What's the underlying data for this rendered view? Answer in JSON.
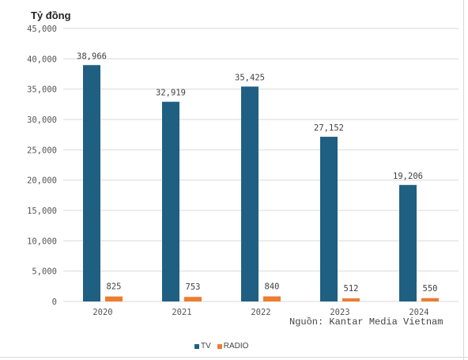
{
  "unit_label": "Tỷ đồng",
  "source_note": "Nguồn: Kantar Media Vietnam",
  "colors": {
    "TV": "#1f5f82",
    "RADIO": "#ed7d31",
    "grid": "#d9d9d9",
    "axis_text": "#555555"
  },
  "chart_data": {
    "type": "bar",
    "categories": [
      "2020",
      "2021",
      "2022",
      "2023",
      "2024"
    ],
    "series": [
      {
        "name": "TV",
        "values": [
          38966,
          32919,
          35425,
          27152,
          19206
        ],
        "labels": [
          "38,966",
          "32,919",
          "35,425",
          "27,152",
          "19,206"
        ]
      },
      {
        "name": "RADIO",
        "values": [
          825,
          753,
          840,
          512,
          550
        ],
        "labels": [
          "825",
          "753",
          "840",
          "512",
          "550"
        ]
      }
    ],
    "ylim": [
      0,
      45000
    ],
    "yticks": [
      "0",
      "5,000",
      "10,000",
      "15,000",
      "20,000",
      "25,000",
      "30,000",
      "35,000",
      "40,000",
      "45,000"
    ],
    "grid": true,
    "legend_position": "bottom"
  }
}
